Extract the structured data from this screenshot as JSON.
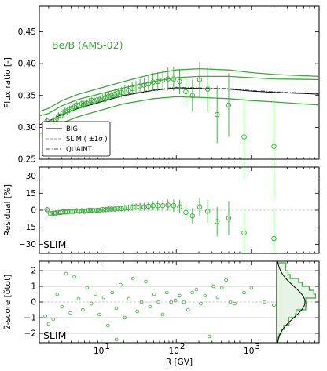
{
  "chart_data": [
    {
      "type": "scatter",
      "panel": "flux-ratio",
      "annotation": "Be/B (AMS-02)",
      "ylabel": "Flux ratio [-]",
      "xscale": "log",
      "xlim": [
        1.5,
        8000
      ],
      "ylim": [
        0.25,
        0.49
      ],
      "yticks": [
        0.25,
        0.3,
        0.35,
        0.4,
        0.45
      ],
      "ytick_labels": [
        "0.25",
        "0.30",
        "0.35",
        "0.40",
        "0.45"
      ],
      "legend": {
        "placement": "lower-left",
        "entries": [
          "BIG",
          "SLIM ( ±1σ )",
          "QUAINT"
        ]
      },
      "colors": {
        "data": "#3aaa3a",
        "model_big": "#000000",
        "model_slim": "#999999",
        "model_quaint": "#555555"
      },
      "data_points": {
        "R": [
          1.9,
          2.1,
          2.2,
          2.35,
          2.5,
          2.7,
          2.9,
          3.1,
          3.3,
          3.55,
          3.8,
          4.1,
          4.4,
          4.75,
          5.1,
          5.5,
          5.9,
          6.4,
          6.9,
          7.5,
          8.1,
          8.8,
          9.6,
          10.5,
          11.5,
          12.6,
          13.8,
          15.2,
          16.8,
          18.6,
          20.7,
          23.1,
          25.9,
          29.1,
          32.9,
          37.4,
          42.7,
          49.1,
          56.8,
          66.2,
          77.8,
          92.3,
          110.7,
          134.2,
          164.5,
          205.0,
          262.0,
          350.0,
          500.0,
          800.0,
          2000.0
        ],
        "ratio": [
          0.31,
          0.302,
          0.305,
          0.31,
          0.312,
          0.318,
          0.318,
          0.322,
          0.325,
          0.326,
          0.328,
          0.33,
          0.332,
          0.335,
          0.334,
          0.337,
          0.336,
          0.338,
          0.34,
          0.342,
          0.341,
          0.343,
          0.344,
          0.346,
          0.347,
          0.349,
          0.35,
          0.352,
          0.354,
          0.355,
          0.357,
          0.358,
          0.361,
          0.363,
          0.365,
          0.366,
          0.368,
          0.371,
          0.372,
          0.374,
          0.376,
          0.376,
          0.372,
          0.356,
          0.35,
          0.375,
          0.36,
          0.32,
          0.335,
          0.285,
          0.27
        ],
        "err": [
          0.006,
          0.006,
          0.006,
          0.006,
          0.006,
          0.006,
          0.006,
          0.006,
          0.006,
          0.006,
          0.006,
          0.006,
          0.006,
          0.006,
          0.006,
          0.006,
          0.006,
          0.006,
          0.006,
          0.006,
          0.006,
          0.006,
          0.006,
          0.006,
          0.007,
          0.007,
          0.007,
          0.007,
          0.008,
          0.008,
          0.009,
          0.009,
          0.01,
          0.01,
          0.011,
          0.012,
          0.013,
          0.014,
          0.015,
          0.016,
          0.018,
          0.019,
          0.02,
          0.022,
          0.025,
          0.028,
          0.035,
          0.045,
          0.05,
          0.065,
          0.08
        ]
      },
      "models": {
        "R": [
          1.5,
          2,
          3,
          5,
          10,
          20,
          50,
          100,
          200,
          500,
          1000,
          2000,
          8000
        ],
        "big": [
          0.304,
          0.31,
          0.32,
          0.33,
          0.34,
          0.35,
          0.358,
          0.362,
          0.361,
          0.36,
          0.357,
          0.355,
          0.352
        ],
        "slim_upper": [
          0.318,
          0.322,
          0.334,
          0.344,
          0.353,
          0.362,
          0.372,
          0.378,
          0.38,
          0.38,
          0.378,
          0.376,
          0.375
        ],
        "slim_lower": [
          0.29,
          0.296,
          0.307,
          0.317,
          0.327,
          0.337,
          0.345,
          0.348,
          0.347,
          0.345,
          0.342,
          0.34,
          0.335
        ],
        "outer_upper": [
          0.325,
          0.33,
          0.342,
          0.352,
          0.362,
          0.372,
          0.384,
          0.39,
          0.392,
          0.39,
          0.386,
          0.383,
          0.38
        ],
        "quaint": [
          0.303,
          0.31,
          0.32,
          0.331,
          0.341,
          0.351,
          0.359,
          0.363,
          0.362,
          0.361,
          0.358,
          0.356,
          0.353
        ]
      }
    },
    {
      "type": "scatter",
      "panel": "residual",
      "annotation": "SLIM",
      "ylabel": "Residual [%]",
      "xscale": "log",
      "xlim": [
        1.5,
        8000
      ],
      "ylim": [
        -38,
        38
      ],
      "yticks": [
        -30,
        -15,
        0,
        15,
        30
      ],
      "ytick_labels": [
        "−30",
        "−15",
        "0",
        "15",
        "30"
      ],
      "values": [
        0.5,
        -3,
        -3,
        -2.5,
        -2.5,
        -2,
        -2,
        -1.5,
        -1.5,
        -1.5,
        -1,
        -1,
        -1,
        -0.5,
        -1,
        -0.5,
        -1,
        -0.5,
        0,
        0,
        -0.5,
        0,
        0,
        0.5,
        0.5,
        1,
        1,
        1,
        1.5,
        1.5,
        2,
        2,
        2.5,
        3,
        3,
        3,
        3.5,
        4,
        4,
        4,
        4.5,
        4,
        3,
        -2,
        -5,
        3,
        -1,
        -10,
        -7,
        -20,
        -25
      ],
      "err": [
        2,
        2,
        2,
        2,
        2,
        2,
        2,
        2,
        2,
        2,
        2,
        2,
        2,
        2,
        2,
        2,
        2,
        2,
        2,
        2,
        2,
        2,
        2,
        2,
        2,
        2.5,
        2.5,
        2.5,
        2.5,
        2.5,
        3,
        3,
        3,
        3,
        3.5,
        3.5,
        4,
        4,
        4.5,
        5,
        5,
        5.5,
        6,
        6.5,
        7,
        8,
        10,
        13,
        15,
        20,
        25
      ]
    },
    {
      "type": "scatter",
      "panel": "z-score",
      "annotation": "SLIM",
      "ylabel": "z̃-score [σ̃tot]",
      "xlabel": "R [GV]",
      "xscale": "log",
      "xlim": [
        1.5,
        8000
      ],
      "ylim": [
        -2.6,
        2.6
      ],
      "yticks": [
        -2,
        -1,
        0,
        1,
        2
      ],
      "ytick_labels": [
        "−2",
        "−1",
        "0",
        "1",
        "2"
      ],
      "xticks": [
        10,
        100,
        1000
      ],
      "xtick_labels": [
        "10",
        "10",
        "10"
      ],
      "xtick_exponents": [
        "1",
        "2",
        "3"
      ],
      "R": [
        2.0,
        2.3,
        2.6,
        3.0,
        3.4,
        3.9,
        4.4,
        5.0,
        5.7,
        6.5,
        7.4,
        8.4,
        9.5,
        10.8,
        12.3,
        14.0,
        15.9,
        18.1,
        20.6,
        23.4,
        26.6,
        30.3,
        34.5,
        39.3,
        44.7,
        50.9,
        58.0,
        66.0,
        75.1,
        85.5,
        97.3,
        110.8,
        126.1,
        143.6,
        163.5,
        186.1,
        211.9,
        241.2,
        274.6,
        312.6,
        356.0,
        405.0,
        461.0,
        525.0,
        600.0,
        800.0,
        1000.0,
        1500.0,
        2000.0,
        1.8,
        16.0
      ],
      "z": [
        -1.4,
        -1.1,
        0.5,
        -0.3,
        1.8,
        -0.7,
        1.6,
        0.2,
        -0.5,
        0.9,
        -0.1,
        0.5,
        -0.8,
        0.3,
        -1.5,
        0.6,
        -0.4,
        1.1,
        -1.0,
        0.2,
        1.5,
        -0.6,
        0.0,
        1.3,
        -0.3,
        0.5,
        0.0,
        -0.8,
        0.6,
        0.0,
        0.1,
        0.4,
        0.0,
        -0.5,
        0.6,
        0.8,
        -0.1,
        0.4,
        -2.2,
        1.0,
        0.3,
        0.9,
        1.4,
        0.0,
        -0.1,
        0.6,
        0.9,
        0.0,
        -0.2,
        -0.9,
        -2.4
      ],
      "histogram": {
        "bins": [
          -2.5,
          -2.25,
          -2.0,
          -1.75,
          -1.5,
          -1.25,
          -1.0,
          -0.75,
          -0.5,
          -0.25,
          0.0,
          0.25,
          0.5,
          0.75,
          1.0,
          1.25,
          1.5,
          1.75,
          2.0,
          2.25,
          2.5
        ],
        "counts": [
          0.4,
          0.7,
          1.3,
          2.0,
          3.5,
          3.4,
          5.3,
          5.5,
          8.2,
          8.3,
          8.2,
          11.0,
          10.5,
          9.2,
          7.2,
          6.2,
          3.8,
          3.2,
          2.5,
          2.6
        ],
        "gaussian_peak": 8.0,
        "max_count": 12.0
      }
    }
  ]
}
